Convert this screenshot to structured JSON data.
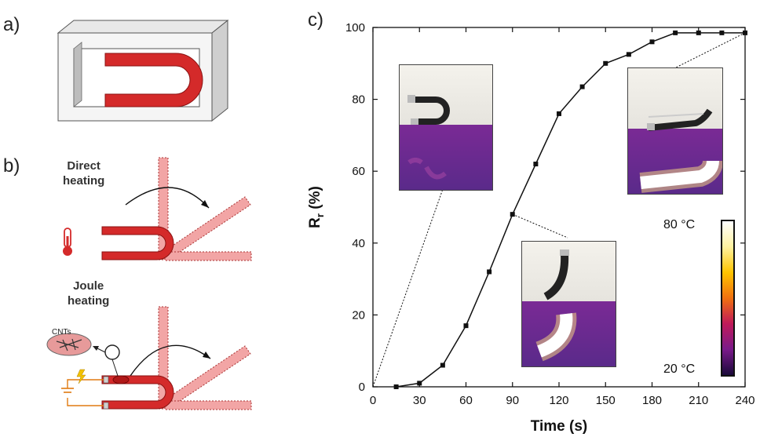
{
  "panels": {
    "a": "a)",
    "b": "b)",
    "c": "c)"
  },
  "schematic": {
    "direct_line1": "Direct",
    "direct_line2": "heating",
    "joule_line1": "Joule",
    "joule_line2": "heating",
    "cnts": "CNTs",
    "colors": {
      "actuator": "#d42a2a",
      "ghost": "#f0a8a8",
      "frame": "#f2f2f2"
    }
  },
  "colorbar": {
    "max_label": "80 °C",
    "min_label": "20 °C"
  },
  "chart_data": {
    "type": "line",
    "xlabel": "Time (s)",
    "ylabel_main": "R",
    "ylabel_sub": "r",
    "ylabel_unit": " (%)",
    "xlim": [
      0,
      240
    ],
    "ylim": [
      0,
      100
    ],
    "xticks": [
      0,
      30,
      60,
      90,
      120,
      150,
      180,
      210,
      240
    ],
    "yticks": [
      0,
      20,
      40,
      60,
      80,
      100
    ],
    "grid": false,
    "marker": "square",
    "series": [
      {
        "x": [
          15,
          30,
          45,
          60,
          75,
          90,
          105,
          120,
          135,
          150,
          165,
          180,
          195,
          210,
          225,
          240
        ],
        "y": [
          0,
          1,
          6,
          17,
          32,
          48,
          62,
          76,
          83.5,
          90,
          92.5,
          96,
          98.5,
          98.5,
          98.5,
          98.5
        ]
      }
    ]
  }
}
